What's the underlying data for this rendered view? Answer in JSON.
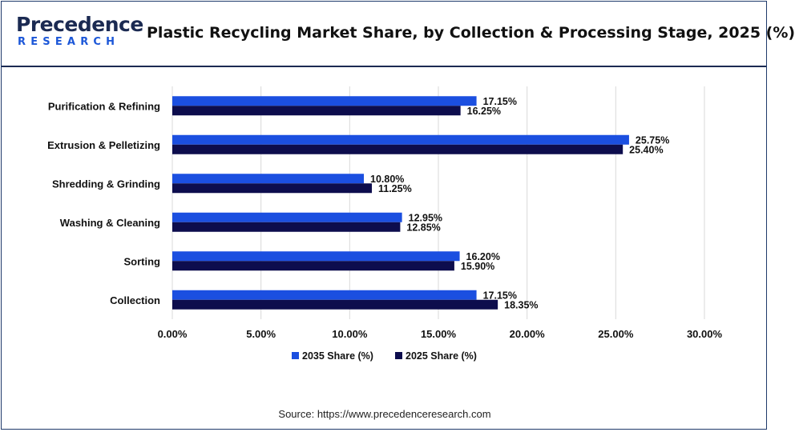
{
  "header": {
    "logo_main": "Precedence",
    "logo_sub": "RESEARCH",
    "title": "Plastic Recycling Market Share, by Collection & Processing Stage, 2025 (%)"
  },
  "source": "Source: https://www.precedenceresearch.com",
  "colors": {
    "series_2035": "#1b4fe0",
    "series_2025": "#0d0d4d",
    "grid": "#d9d9d9",
    "brand_dark": "#1b2a52",
    "brand_accent": "#1c57d8"
  },
  "chart_data": {
    "type": "bar",
    "orientation": "horizontal",
    "categories": [
      "Purification & Refining",
      "Extrusion & Pelletizing",
      "Shredding & Grinding",
      "Washing & Cleaning",
      "Sorting",
      "Collection"
    ],
    "series": [
      {
        "name": "2035 Share (%)",
        "values": [
          17.15,
          25.75,
          10.8,
          12.95,
          16.2,
          17.15
        ],
        "labels": [
          "17.15%",
          "25.75%",
          "10.80%",
          "12.95%",
          "16.20%",
          "17.15%"
        ]
      },
      {
        "name": "2025 Share (%)",
        "values": [
          16.25,
          25.4,
          11.25,
          12.85,
          15.9,
          18.35
        ],
        "labels": [
          "16.25%",
          "25.40%",
          "11.25%",
          "12.85%",
          "15.90%",
          "18.35%"
        ]
      }
    ],
    "xlim": [
      0,
      30
    ],
    "xticks": [
      "0.00%",
      "5.00%",
      "10.00%",
      "15.00%",
      "20.00%",
      "25.00%",
      "30.00%"
    ],
    "grid": true,
    "legend_position": "bottom"
  }
}
